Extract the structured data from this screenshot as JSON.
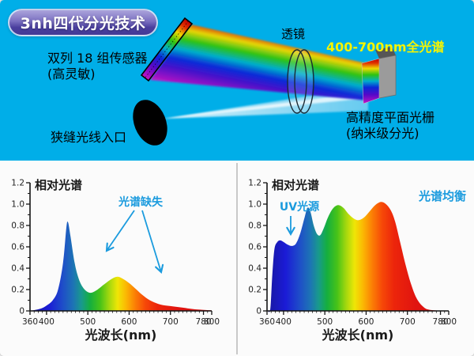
{
  "page": {
    "top_bg": "#00AEE8",
    "bottom_bg": "#FBFBFB",
    "divider_color": "#C9C9C9"
  },
  "badge": {
    "label": "3nh四代分光技术",
    "text_color": "#FFFFFF"
  },
  "diagram": {
    "labels": {
      "sensor_line1": "双列 18 组传感器",
      "sensor_line2": "(高灵敏)",
      "lens": "透镜",
      "full_spectrum": "400-700nm全光谱",
      "grating_line1": "高精度平面光栅",
      "grating_line2": "(纳米级分光)",
      "slit": "狭缝光线入口"
    },
    "full_spectrum_color": "#F7F400",
    "label_color": "#000000",
    "beam_gradient": [
      {
        "at": 0.0,
        "color": "#C00000"
      },
      {
        "at": 0.1,
        "color": "#E03000"
      },
      {
        "at": 0.22,
        "color": "#EFD800"
      },
      {
        "at": 0.36,
        "color": "#2EC310"
      },
      {
        "at": 0.5,
        "color": "#00AECC"
      },
      {
        "at": 0.64,
        "color": "#0A28D8"
      },
      {
        "at": 0.8,
        "color": "#5508C8"
      },
      {
        "at": 1.0,
        "color": "#C414C4"
      }
    ]
  },
  "spectrum_gradient": [
    {
      "at": 360,
      "color": "#17179E"
    },
    {
      "at": 405,
      "color": "#1B1BD6"
    },
    {
      "at": 440,
      "color": "#1E4FC8"
    },
    {
      "at": 465,
      "color": "#1D74B4"
    },
    {
      "at": 485,
      "color": "#189A8C"
    },
    {
      "at": 505,
      "color": "#15AE3F"
    },
    {
      "at": 530,
      "color": "#47C318"
    },
    {
      "at": 552,
      "color": "#A4D80E"
    },
    {
      "at": 572,
      "color": "#EFE606"
    },
    {
      "at": 592,
      "color": "#FBB903"
    },
    {
      "at": 615,
      "color": "#FB7D05"
    },
    {
      "at": 640,
      "color": "#F64708"
    },
    {
      "at": 668,
      "color": "#EC250B"
    },
    {
      "at": 720,
      "color": "#E01410"
    },
    {
      "at": 800,
      "color": "#D81010"
    }
  ],
  "chart_data": [
    {
      "id": "left",
      "type": "area",
      "title": "相对光谱",
      "xlabel": "光波长(nm)",
      "ylabel": "",
      "xlim": [
        360,
        800
      ],
      "ylim": [
        0,
        1.2
      ],
      "x_ticks": [
        360,
        400,
        500,
        600,
        700,
        780,
        800
      ],
      "y_ticks": [
        0,
        0.2,
        0.4,
        0.6,
        0.8,
        1.0,
        1.2
      ],
      "grid": false,
      "legend": "none",
      "annotations": [
        {
          "text": "光谱缺失",
          "color": "#1B9BDE"
        }
      ],
      "series": [
        {
          "name": "相对光谱",
          "points": [
            [
              360,
              0
            ],
            [
              385,
              0.02
            ],
            [
              400,
              0.05
            ],
            [
              415,
              0.1
            ],
            [
              428,
              0.2
            ],
            [
              440,
              0.45
            ],
            [
              448,
              0.78
            ],
            [
              452,
              0.83
            ],
            [
              458,
              0.7
            ],
            [
              468,
              0.45
            ],
            [
              478,
              0.3
            ],
            [
              490,
              0.21
            ],
            [
              505,
              0.17
            ],
            [
              520,
              0.19
            ],
            [
              540,
              0.25
            ],
            [
              558,
              0.3
            ],
            [
              572,
              0.32
            ],
            [
              585,
              0.3
            ],
            [
              600,
              0.26
            ],
            [
              615,
              0.21
            ],
            [
              632,
              0.15
            ],
            [
              650,
              0.1
            ],
            [
              675,
              0.06
            ],
            [
              700,
              0.045
            ],
            [
              730,
              0.03
            ],
            [
              760,
              0.015
            ],
            [
              800,
              0.005
            ]
          ]
        }
      ]
    },
    {
      "id": "right",
      "type": "area",
      "title": "相对光谱",
      "xlabel": "光波长(nm)",
      "ylabel": "",
      "xlim": [
        360,
        800
      ],
      "ylim": [
        0,
        1.2
      ],
      "x_ticks": [
        360,
        400,
        500,
        600,
        700,
        780,
        800
      ],
      "y_ticks": [
        0,
        0.2,
        0.4,
        0.6,
        0.8,
        1.0,
        1.2
      ],
      "grid": false,
      "legend": "none",
      "annotations": [
        {
          "text": "UV光源",
          "color": "#1B9BDE"
        },
        {
          "text": "光谱均衡",
          "color": "#1B9BDE"
        }
      ],
      "series": [
        {
          "name": "相对光谱",
          "points": [
            [
              362,
              0
            ],
            [
              368,
              0.02
            ],
            [
              373,
              0.35
            ],
            [
              378,
              0.58
            ],
            [
              385,
              0.645
            ],
            [
              392,
              0.66
            ],
            [
              400,
              0.645
            ],
            [
              410,
              0.62
            ],
            [
              420,
              0.608
            ],
            [
              430,
              0.63
            ],
            [
              440,
              0.72
            ],
            [
              450,
              0.86
            ],
            [
              458,
              0.965
            ],
            [
              465,
              0.93
            ],
            [
              473,
              0.8
            ],
            [
              481,
              0.72
            ],
            [
              489,
              0.71
            ],
            [
              498,
              0.78
            ],
            [
              508,
              0.88
            ],
            [
              520,
              0.96
            ],
            [
              532,
              0.99
            ],
            [
              545,
              0.965
            ],
            [
              558,
              0.905
            ],
            [
              570,
              0.865
            ],
            [
              582,
              0.85
            ],
            [
              595,
              0.875
            ],
            [
              608,
              0.93
            ],
            [
              622,
              0.99
            ],
            [
              636,
              1.02
            ],
            [
              648,
              1.0
            ],
            [
              660,
              0.94
            ],
            [
              670,
              0.84
            ],
            [
              682,
              0.65
            ],
            [
              695,
              0.44
            ],
            [
              708,
              0.26
            ],
            [
              722,
              0.12
            ],
            [
              738,
              0.04
            ],
            [
              755,
              0.01
            ],
            [
              800,
              0
            ]
          ]
        }
      ]
    }
  ]
}
